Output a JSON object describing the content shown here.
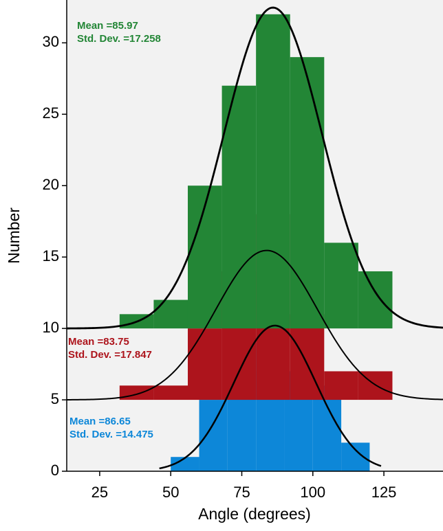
{
  "chart_data": {
    "type": "histogram",
    "x_label": "Angle (degrees)",
    "y_label": "Number",
    "xlim": [
      13.4,
      145.8
    ],
    "ylim": [
      0,
      33
    ],
    "xticks": [
      25,
      50,
      75,
      100,
      125
    ],
    "yticks": [
      0,
      5,
      10,
      15,
      20,
      25,
      30
    ],
    "series": [
      {
        "color": "#0d87d8",
        "baseline": 0,
        "bins": [
          50,
          60,
          70,
          80,
          90,
          100,
          110,
          120
        ],
        "values": [
          1,
          5,
          7,
          9,
          7,
          6,
          2
        ],
        "mean_label": "Mean =",
        "mean": 86.65,
        "sd_label": "Std. Dev. =",
        "sd": 14.475,
        "curve_range": [
          46,
          124
        ]
      },
      {
        "color": "#ad141c",
        "baseline": 5,
        "bins": [
          32,
          44,
          56,
          68,
          80,
          92,
          104,
          116,
          128
        ],
        "values": [
          1,
          1,
          5,
          9,
          13,
          6,
          2,
          2
        ],
        "mean_label": "Mean =",
        "mean": 83.75,
        "sd_label": "Std. Dev. =",
        "sd": 17.847
      },
      {
        "color": "#238636",
        "baseline": 10,
        "bins": [
          32,
          44,
          56,
          68,
          80,
          92,
          104,
          116,
          128
        ],
        "values": [
          1,
          2,
          10,
          17,
          22,
          19,
          6,
          4
        ],
        "mean_label": "Mean =",
        "mean": 85.97,
        "sd_label": "Std. Dev. =",
        "sd": 17.258
      }
    ]
  }
}
